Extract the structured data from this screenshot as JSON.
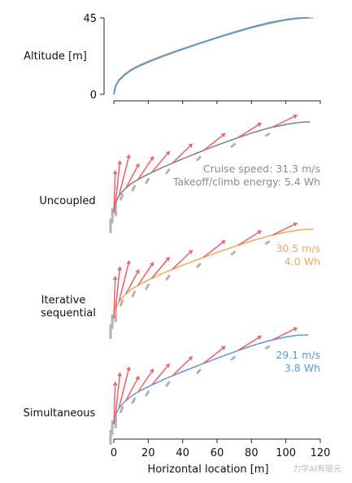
{
  "chart_data": {
    "type": "line",
    "xlabel": "Horizontal location [m]",
    "xlim": [
      0,
      120
    ],
    "x_ticks": [
      0,
      20,
      40,
      60,
      80,
      100,
      120
    ],
    "top_panel": {
      "ylabel": "Altitude [m]",
      "ylim": [
        0,
        45
      ],
      "y_ticks": [
        0,
        45
      ],
      "series": [
        {
          "name": "Uncoupled",
          "color": "#7f7f7f",
          "x": [
            0,
            1,
            3,
            6,
            10,
            15,
            20,
            30,
            40,
            50,
            60,
            70,
            80,
            90,
            100,
            108,
            112,
            114
          ],
          "y": [
            0,
            5,
            8.5,
            11.5,
            14.5,
            17,
            19.2,
            23.2,
            26.8,
            30.2,
            33.5,
            36.6,
            39.5,
            42,
            43.8,
            44.8,
            45,
            45
          ]
        },
        {
          "name": "Iterative sequential",
          "color": "#f2a957",
          "x": [
            0,
            1,
            3,
            6,
            10,
            15,
            20,
            30,
            40,
            50,
            60,
            70,
            80,
            90,
            100,
            108,
            113,
            116
          ],
          "y": [
            0,
            5,
            8.5,
            11.6,
            14.7,
            17.3,
            19.5,
            23.4,
            26.9,
            30.2,
            33.3,
            36.3,
            39.1,
            41.6,
            43.6,
            44.7,
            45,
            45
          ]
        },
        {
          "name": "Simultaneous",
          "color": "#5b9bd5",
          "x": [
            0,
            1,
            3,
            6,
            10,
            15,
            20,
            30,
            40,
            50,
            60,
            70,
            80,
            90,
            100,
            107,
            111,
            113
          ],
          "y": [
            0,
            4.8,
            8.2,
            11.2,
            14.2,
            16.8,
            19,
            23,
            26.6,
            30,
            33.3,
            36.5,
            39.5,
            42.1,
            44,
            44.9,
            45,
            45
          ]
        }
      ]
    },
    "panels": [
      {
        "label": "Uncoupled",
        "color": "#7f7f7f",
        "annotation": [
          "Cruise speed: 31.3 m/s",
          "Takeoff/climb energy: 5.4 Wh"
        ],
        "arrows_x": [
          0,
          1,
          3,
          7,
          14,
          22,
          34,
          52,
          72,
          92
        ]
      },
      {
        "label": "Iterative sequential",
        "color": "#f2a957",
        "annotation": [
          "30.5 m/s",
          "4.0 Wh"
        ],
        "arrows_x": [
          0,
          1,
          3,
          7,
          14,
          22,
          34,
          52,
          72,
          92
        ]
      },
      {
        "label": "Simultaneous",
        "color": "#5b9bd5",
        "annotation": [
          "29.1 m/s",
          "3.8 Wh"
        ],
        "arrows_x": [
          0,
          1,
          3,
          7,
          14,
          22,
          34,
          52,
          72,
          92
        ]
      }
    ],
    "arrow_color": "#e8696b",
    "vehicle_color": "#b3b3b3",
    "watermark": "力学AI有限元"
  }
}
